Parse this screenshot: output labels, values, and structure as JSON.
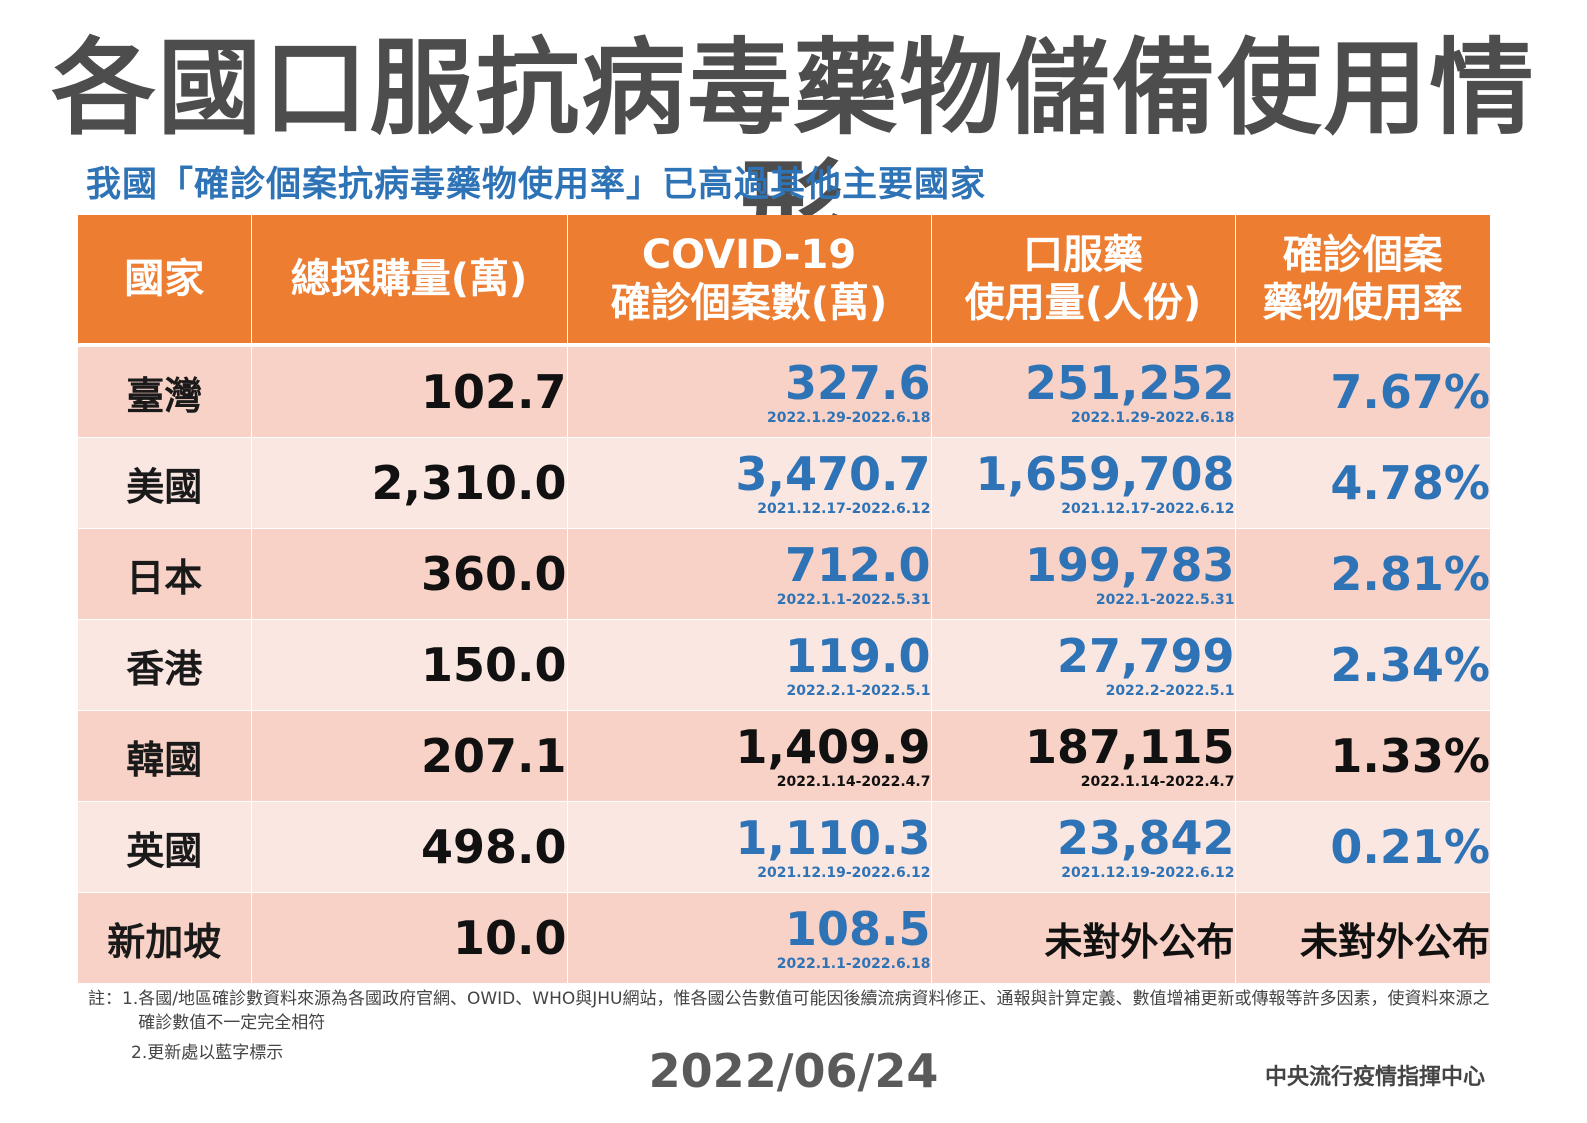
{
  "title": "各國口服抗病毒藥物儲備使用情形",
  "subtitle": "我國「確診個案抗病毒藥物使用率」已高過其他主要國家",
  "table": {
    "headers": [
      [
        "國家"
      ],
      [
        "總採購量(萬)"
      ],
      [
        "COVID-19",
        "確診個案數(萬)"
      ],
      [
        "口服藥",
        "使用量(人份)"
      ],
      [
        "確診個案",
        "藥物使用率"
      ]
    ],
    "rows": [
      {
        "country": "臺灣",
        "purchase": "102.7",
        "cases": "327.6",
        "cases_period": "2022.1.29-2022.6.18",
        "usage": "251,252",
        "usage_period": "2022.1.29-2022.6.18",
        "rate": "7.67%"
      },
      {
        "country": "美國",
        "purchase": "2,310.0",
        "cases": "3,470.7",
        "cases_period": "2021.12.17-2022.6.12",
        "usage": "1,659,708",
        "usage_period": "2021.12.17-2022.6.12",
        "rate": "4.78%"
      },
      {
        "country": "日本",
        "purchase": "360.0",
        "cases": "712.0",
        "cases_period": "2022.1.1-2022.5.31",
        "usage": "199,783",
        "usage_period": "2022.1-2022.5.31",
        "rate": "2.81%"
      },
      {
        "country": "香港",
        "purchase": "150.0",
        "cases": "119.0",
        "cases_period": "2022.2.1-2022.5.1",
        "usage": "27,799",
        "usage_period": "2022.2-2022.5.1",
        "rate": "2.34%"
      },
      {
        "country": "韓國",
        "purchase": "207.1",
        "cases": "1,409.9",
        "cases_period": "2022.1.14-2022.4.7",
        "usage": "187,115",
        "usage_period": "2022.1.14-2022.4.7",
        "rate": "1.33%"
      },
      {
        "country": "英國",
        "purchase": "498.0",
        "cases": "1,110.3",
        "cases_period": "2021.12.19-2022.6.12",
        "usage": "23,842",
        "usage_period": "2021.12.19-2022.6.12",
        "rate": "0.21%"
      },
      {
        "country": "新加坡",
        "purchase": "10.0",
        "cases": "108.5",
        "cases_period": "2022.1.1-2022.6.18",
        "usage": "未對外公布",
        "usage_period": "",
        "rate": "未對外公布"
      }
    ]
  },
  "notes": {
    "note1_label": "註：1.",
    "note1": "各國/地區確診數資料來源為各國政府官網、OWID、WHO與JHU網站，惟各國公告數值可能因後續流病資料修正、通報與計算定義、數值增補更新或傳報等許多因素，使資料來源之確診數值不一定完全相符",
    "note2": "2.更新處以藍字標示"
  },
  "date": "2022/06/24",
  "organization": "中央流行疫情指揮中心",
  "colors": {
    "header_bg": "#ed7d31",
    "row_dark": "#f8d2c6",
    "row_light": "#fbe7e2",
    "highlight_blue": "#2f73b7",
    "title_gray": "#4d4d4d"
  }
}
